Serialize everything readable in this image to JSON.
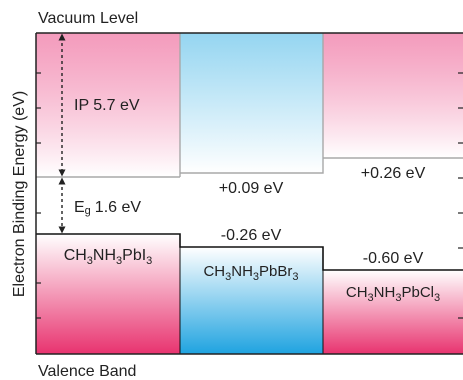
{
  "top_label": "Vacuum Level",
  "bottom_label": "Valence Band",
  "y_axis_label": "Electron Binding Energy (eV)",
  "ip_label": "IP 5.7 eV",
  "eg_label_prefix": "E",
  "eg_label_sub": "g",
  "eg_label_value": "1.6 eV",
  "materials": [
    {
      "formula": [
        [
          "CH",
          ""
        ],
        [
          "3",
          "sub"
        ],
        [
          "NH",
          ""
        ],
        [
          "3",
          "sub"
        ],
        [
          "PbI",
          ""
        ],
        [
          "3",
          "sub"
        ]
      ],
      "cb_shift_label": "",
      "vb_shift_label": "",
      "cb_color": "#f07aa6",
      "vb_color": "#e8336f"
    },
    {
      "formula": [
        [
          "CH",
          ""
        ],
        [
          "3",
          "sub"
        ],
        [
          "NH",
          ""
        ],
        [
          "3",
          "sub"
        ],
        [
          "PbBr",
          ""
        ],
        [
          "3",
          "sub"
        ]
      ],
      "cb_shift_label": "+0.09 eV",
      "vb_shift_label": "-0.26 eV",
      "cb_color": "#8fd3f0",
      "vb_color": "#1fa3e0"
    },
    {
      "formula": [
        [
          "CH",
          ""
        ],
        [
          "3",
          "sub"
        ],
        [
          "NH",
          ""
        ],
        [
          "3",
          "sub"
        ],
        [
          "PbCl",
          ""
        ],
        [
          "3",
          "sub"
        ]
      ],
      "cb_shift_label": "+0.26 eV",
      "vb_shift_label": "-0.60 eV",
      "cb_color": "#f07aa6",
      "vb_color": "#e8336f"
    }
  ]
}
